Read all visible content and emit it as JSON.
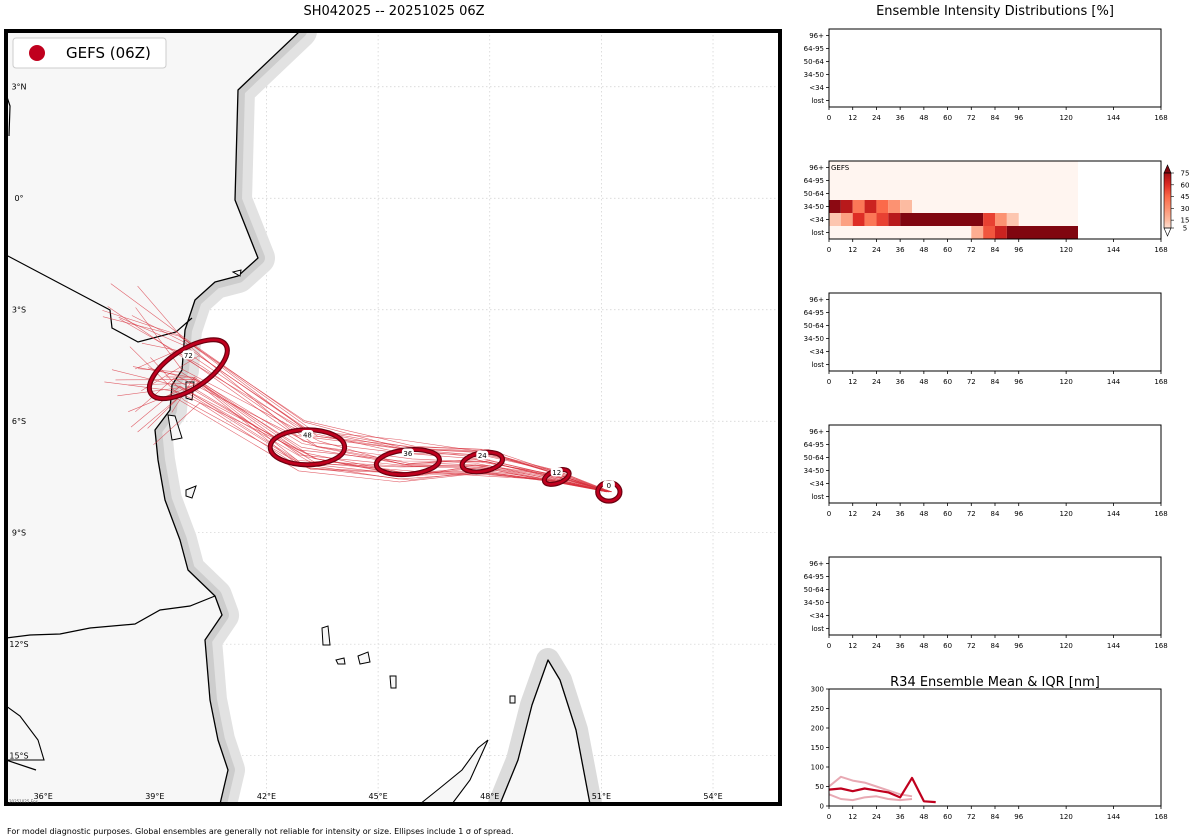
{
  "page": {
    "main_title": "SH042025 -- 20251025 06Z",
    "right_title": "Ensemble Intensity Distributions [%]",
    "footnote": "For model diagnostic purposes. Global ensembles are generally not reliable for intensity or size. Ellipses include 1 σ of spread.",
    "map_stamp": "20251025 Ens"
  },
  "colors": {
    "gefs": "#c0001e",
    "gefs_dark": "#6b0010",
    "land": "#f7f7f7",
    "r34_light": "#e8a9b3"
  },
  "chart_data": [
    {
      "type": "map",
      "title": "SH042025 -- 20251025 06Z",
      "lon_range": [
        35.0,
        55.8
      ],
      "lat_range": [
        -16.3,
        4.5
      ],
      "lon_ticks": [
        36,
        39,
        42,
        45,
        48,
        51,
        54
      ],
      "lon_tick_labels": [
        "36°E",
        "39°E",
        "42°E",
        "45°E",
        "48°E",
        "51°E",
        "54°E"
      ],
      "lat_ticks": [
        3,
        0,
        -3,
        -6,
        -9,
        -12,
        -15
      ],
      "lat_tick_labels": [
        "3°N",
        "0°",
        "3°S",
        "6°S",
        "9°S",
        "12°S",
        "15°S"
      ],
      "legend": [
        {
          "label": "GEFS (06Z)",
          "color": "#c0001e"
        }
      ],
      "legend_position": "top-left",
      "ensemble_ellipses": [
        {
          "hour": "0",
          "label": "0",
          "lon": 51.2,
          "lat": -7.9,
          "rx": 0.3,
          "ry": 0.25,
          "angle": 0
        },
        {
          "hour": "12",
          "label": "12",
          "lon": 49.8,
          "lat": -7.5,
          "rx": 0.35,
          "ry": 0.17,
          "angle": -20
        },
        {
          "hour": "24",
          "label": "24",
          "lon": 47.8,
          "lat": -7.1,
          "rx": 0.55,
          "ry": 0.25,
          "angle": -10
        },
        {
          "hour": "36",
          "label": "36",
          "lon": 45.8,
          "lat": -7.1,
          "rx": 0.85,
          "ry": 0.33,
          "angle": -5
        },
        {
          "hour": "48",
          "label": "48",
          "lon": 43.1,
          "lat": -6.7,
          "rx": 1.0,
          "ry": 0.47,
          "angle": 0
        },
        {
          "hour": "72",
          "label": "72",
          "lon": 39.9,
          "lat": -4.6,
          "rx": 1.2,
          "ry": 0.53,
          "angle": -33
        }
      ],
      "member_count_shown": 30
    },
    {
      "type": "heatmap",
      "title": "Ensemble Intensity Distributions [%]",
      "panels": [
        {
          "label": "",
          "cells": []
        },
        {
          "label": "GEFS",
          "cells": [
            {
              "x0": 0,
              "x1": 6,
              "row": "<34",
              "value": 12
            },
            {
              "x0": 6,
              "x1": 12,
              "row": "<34",
              "value": 25
            },
            {
              "x0": 12,
              "x1": 18,
              "row": "<34",
              "value": 60
            },
            {
              "x0": 18,
              "x1": 24,
              "row": "<34",
              "value": 40
            },
            {
              "x0": 24,
              "x1": 30,
              "row": "<34",
              "value": 55
            },
            {
              "x0": 30,
              "x1": 36,
              "row": "<34",
              "value": 70
            },
            {
              "x0": 36,
              "x1": 78,
              "row": "<34",
              "value": 90
            },
            {
              "x0": 78,
              "x1": 84,
              "row": "<34",
              "value": 55
            },
            {
              "x0": 84,
              "x1": 90,
              "row": "<34",
              "value": 30
            },
            {
              "x0": 90,
              "x1": 96,
              "row": "<34",
              "value": 12
            },
            {
              "x0": 0,
              "x1": 6,
              "row": "34-50",
              "value": 85
            },
            {
              "x0": 6,
              "x1": 12,
              "row": "34-50",
              "value": 70
            },
            {
              "x0": 12,
              "x1": 18,
              "row": "34-50",
              "value": 40
            },
            {
              "x0": 18,
              "x1": 24,
              "row": "34-50",
              "value": 65
            },
            {
              "x0": 24,
              "x1": 30,
              "row": "34-50",
              "value": 45
            },
            {
              "x0": 30,
              "x1": 36,
              "row": "34-50",
              "value": 30
            },
            {
              "x0": 36,
              "x1": 42,
              "row": "34-50",
              "value": 15
            },
            {
              "x0": 72,
              "x1": 78,
              "row": "lost",
              "value": 20
            },
            {
              "x0": 78,
              "x1": 84,
              "row": "lost",
              "value": 50
            },
            {
              "x0": 84,
              "x1": 90,
              "row": "lost",
              "value": 65
            },
            {
              "x0": 90,
              "x1": 126,
              "row": "lost",
              "value": 90
            }
          ]
        },
        {
          "label": "",
          "cells": []
        },
        {
          "label": "",
          "cells": []
        },
        {
          "label": "",
          "cells": []
        }
      ],
      "heat_extent_hours": [
        0,
        126
      ],
      "rows": [
        "96+",
        "64-95",
        "50-64",
        "34-50",
        "<34",
        "lost"
      ],
      "x_ticks": [
        0,
        12,
        24,
        36,
        48,
        60,
        72,
        84,
        96,
        120,
        144,
        168
      ],
      "x_tick_labels": [
        "0",
        "12",
        "24",
        "36",
        "48",
        "60",
        "72",
        "84",
        "96",
        "120",
        "144",
        "168"
      ],
      "colorbar_ticks": [
        75,
        60,
        45,
        30,
        15,
        5
      ],
      "colorbar_tick_labels": [
        "75",
        "60",
        "45",
        "30",
        "15",
        "5"
      ]
    },
    {
      "type": "line",
      "title": "R34 Ensemble Mean & IQR [nm]",
      "x_ticks": [
        0,
        12,
        24,
        36,
        48,
        60,
        72,
        84,
        96,
        120,
        144,
        168
      ],
      "x_tick_labels": [
        "0",
        "12",
        "24",
        "36",
        "48",
        "60",
        "72",
        "84",
        "96",
        "120",
        "144",
        "168"
      ],
      "y_ticks": [
        0,
        50,
        100,
        150,
        200,
        250,
        300
      ],
      "y_tick_labels": [
        "0",
        "50",
        "100",
        "150",
        "200",
        "250",
        "300"
      ],
      "ylim": [
        0,
        300
      ],
      "xlim": [
        0,
        168
      ],
      "series": [
        {
          "name": "iqr-upper",
          "color": "#e8a9b3",
          "x": [
            0,
            6,
            12,
            18,
            24,
            30,
            36,
            42
          ],
          "y": [
            50,
            75,
            65,
            60,
            50,
            40,
            30,
            25
          ]
        },
        {
          "name": "iqr-lower",
          "color": "#e8a9b3",
          "x": [
            0,
            6,
            12,
            18,
            24,
            30,
            36,
            42
          ],
          "y": [
            30,
            18,
            15,
            22,
            25,
            18,
            15,
            18
          ]
        },
        {
          "name": "mean",
          "color": "#c0001e",
          "x": [
            0,
            6,
            12,
            18,
            24,
            30,
            36,
            42,
            48,
            54
          ],
          "y": [
            42,
            45,
            38,
            45,
            40,
            35,
            22,
            72,
            12,
            10
          ]
        }
      ]
    }
  ]
}
